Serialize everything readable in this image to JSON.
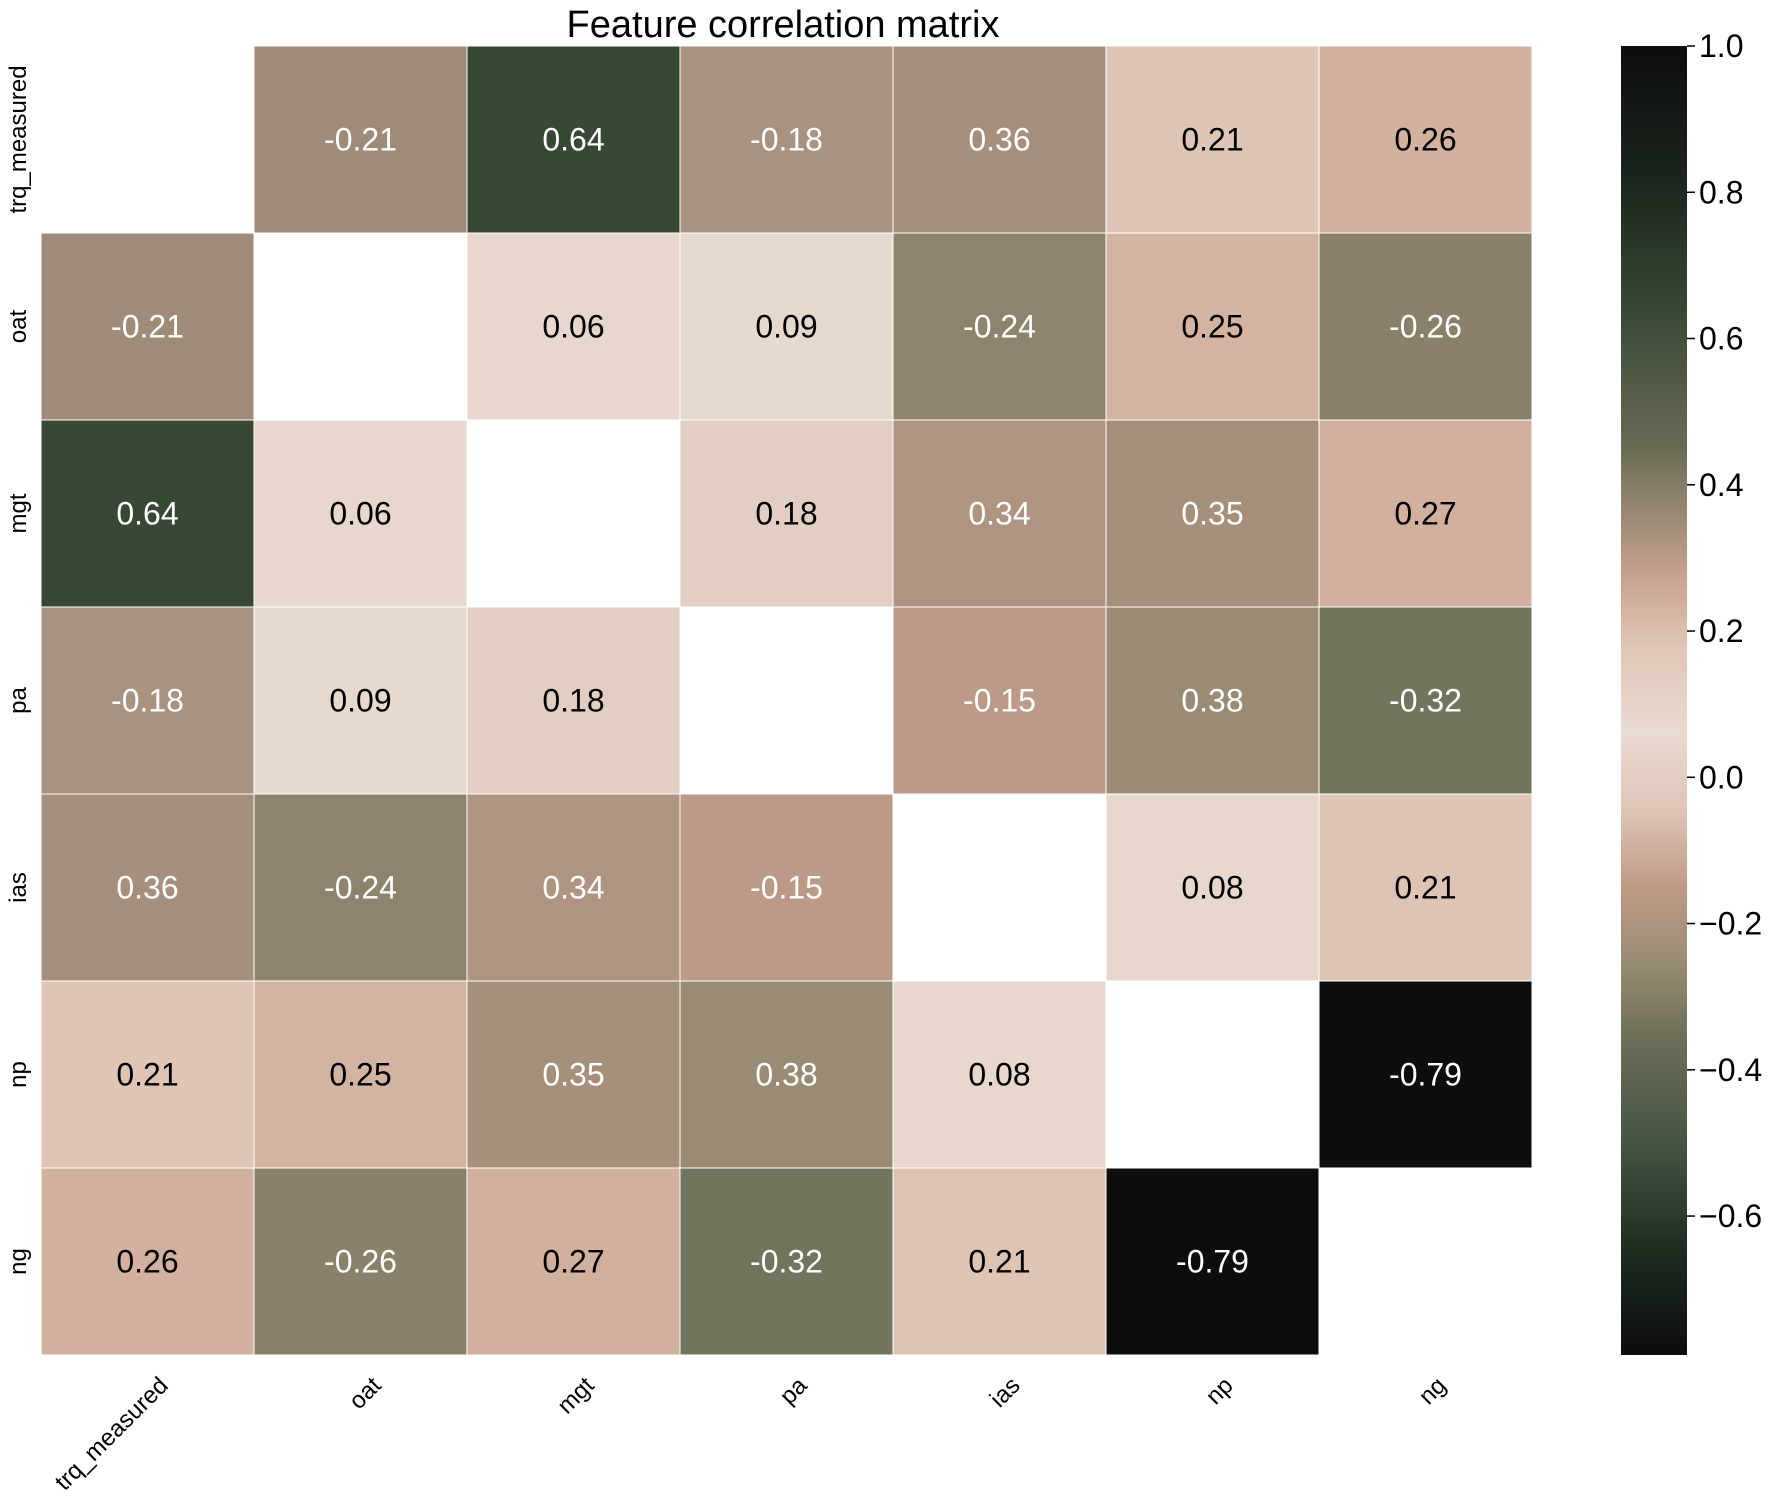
{
  "chart_data": {
    "type": "heatmap",
    "title": "Feature correlation matrix",
    "xlabel": "",
    "ylabel": "",
    "labels": [
      "trq_measured",
      "oat",
      "mgt",
      "pa",
      "ias",
      "np",
      "ng"
    ],
    "matrix": [
      [
        null,
        -0.21,
        0.64,
        -0.18,
        0.36,
        0.21,
        0.26
      ],
      [
        -0.21,
        null,
        0.06,
        0.09,
        -0.24,
        0.25,
        -0.26
      ],
      [
        0.64,
        0.06,
        null,
        0.18,
        0.34,
        0.35,
        0.27
      ],
      [
        -0.18,
        0.09,
        0.18,
        null,
        -0.15,
        0.38,
        -0.32
      ],
      [
        0.36,
        -0.24,
        0.34,
        -0.15,
        null,
        0.08,
        0.21
      ],
      [
        0.21,
        0.25,
        0.35,
        0.38,
        0.08,
        null,
        -0.79
      ],
      [
        0.26,
        -0.26,
        0.27,
        -0.32,
        0.21,
        -0.79,
        null
      ]
    ],
    "cell_colors": [
      [
        null,
        "#9e8c78",
        "#374834",
        "#a99280",
        "#a68f7d",
        "#dfc5b6",
        "#d2b1a0"
      ],
      [
        null,
        null,
        "#e7d7cd",
        "#e8d9cf",
        "#8e846d",
        "#d3b4a2",
        "#89816a"
      ],
      [
        null,
        null,
        null,
        "#e2cec2",
        "#b09482",
        "#a68f7b",
        "#d1b09e"
      ],
      [
        null,
        null,
        null,
        null,
        "#bb9a87",
        "#9a8c74",
        "#72745e"
      ],
      [
        null,
        null,
        null,
        null,
        null,
        "#e7d7cc",
        "#dec4b5"
      ],
      [
        null,
        null,
        null,
        null,
        null,
        null,
        "#0c0d0e"
      ],
      [
        null,
        null,
        null,
        null,
        null,
        null,
        null
      ]
    ],
    "colorbar": {
      "range": [
        -0.79,
        1.0
      ],
      "ticks": [
        "1.0",
        "0.8",
        "0.6",
        "0.4",
        "0.2",
        "0.0",
        "−0.2",
        "−0.4",
        "−0.6"
      ],
      "tick_values": [
        1.0,
        0.8,
        0.6,
        0.4,
        0.2,
        0.0,
        -0.2,
        -0.4,
        -0.6
      ],
      "stops": [
        {
          "v": 1.0,
          "c": "#0c0d0e"
        },
        {
          "v": 0.82,
          "c": "#1b251c"
        },
        {
          "v": 0.64,
          "c": "#374834"
        },
        {
          "v": 0.45,
          "c": "#6a6b55"
        },
        {
          "v": 0.35,
          "c": "#9e8c78"
        },
        {
          "v": 0.28,
          "c": "#c6a08e"
        },
        {
          "v": 0.18,
          "c": "#dfc5b6"
        },
        {
          "v": 0.06,
          "c": "#e9dbd1"
        },
        {
          "v": -0.05,
          "c": "#ddc3b6"
        },
        {
          "v": -0.15,
          "c": "#bf9a86"
        },
        {
          "v": -0.25,
          "c": "#9a8c74"
        },
        {
          "v": -0.35,
          "c": "#70705a"
        },
        {
          "v": -0.5,
          "c": "#455543"
        },
        {
          "v": -0.65,
          "c": "#1e2c20"
        },
        {
          "v": -0.79,
          "c": "#0c0d0e"
        }
      ]
    },
    "grid": true,
    "legend": "colorbar-right"
  }
}
